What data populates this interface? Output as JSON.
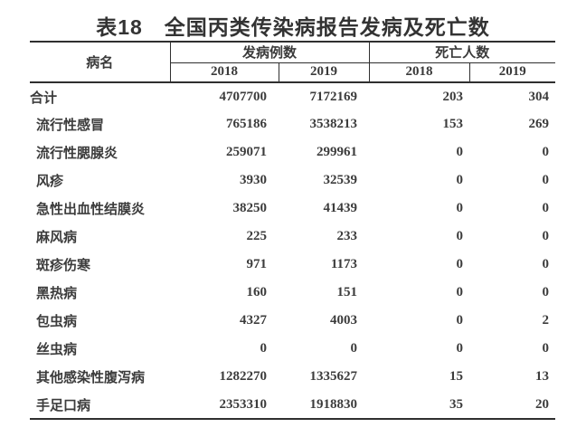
{
  "title": "表18　全国丙类传染病报告发病及死亡数",
  "table": {
    "col_disease_label": "病名",
    "group_cases_label": "发病例数",
    "group_deaths_label": "死亡人数",
    "year_left": "2018",
    "year_right": "2019",
    "rows": [
      {
        "name": "合计",
        "total": true,
        "cases_2018": "4707700",
        "cases_2019": "7172169",
        "deaths_2018": "203",
        "deaths_2019": "304"
      },
      {
        "name": "流行性感冒",
        "total": false,
        "cases_2018": "765186",
        "cases_2019": "3538213",
        "deaths_2018": "153",
        "deaths_2019": "269"
      },
      {
        "name": "流行性腮腺炎",
        "total": false,
        "cases_2018": "259071",
        "cases_2019": "299961",
        "deaths_2018": "0",
        "deaths_2019": "0"
      },
      {
        "name": "风疹",
        "total": false,
        "cases_2018": "3930",
        "cases_2019": "32539",
        "deaths_2018": "0",
        "deaths_2019": "0"
      },
      {
        "name": "急性出血性结膜炎",
        "total": false,
        "cases_2018": "38250",
        "cases_2019": "41439",
        "deaths_2018": "0",
        "deaths_2019": "0"
      },
      {
        "name": "麻风病",
        "total": false,
        "cases_2018": "225",
        "cases_2019": "233",
        "deaths_2018": "0",
        "deaths_2019": "0"
      },
      {
        "name": "斑疹伤寒",
        "total": false,
        "cases_2018": "971",
        "cases_2019": "1173",
        "deaths_2018": "0",
        "deaths_2019": "0"
      },
      {
        "name": "黑热病",
        "total": false,
        "cases_2018": "160",
        "cases_2019": "151",
        "deaths_2018": "0",
        "deaths_2019": "0"
      },
      {
        "name": "包虫病",
        "total": false,
        "cases_2018": "4327",
        "cases_2019": "4003",
        "deaths_2018": "0",
        "deaths_2019": "2"
      },
      {
        "name": "丝虫病",
        "total": false,
        "cases_2018": "0",
        "cases_2019": "0",
        "deaths_2018": "0",
        "deaths_2019": "0"
      },
      {
        "name": "其他感染性腹泻病",
        "total": false,
        "cases_2018": "1282270",
        "cases_2019": "1335627",
        "deaths_2018": "15",
        "deaths_2019": "13"
      },
      {
        "name": "手足口病",
        "total": false,
        "cases_2018": "2353310",
        "cases_2019": "1918830",
        "deaths_2018": "35",
        "deaths_2019": "20"
      }
    ]
  },
  "chart_data": {
    "type": "table",
    "title": "表18　全国丙类传染病报告发病及死亡数",
    "columns": [
      "病名",
      "发病例数 2018",
      "发病例数 2019",
      "死亡人数 2018",
      "死亡人数 2019"
    ],
    "rows": [
      [
        "合计",
        4707700,
        7172169,
        203,
        304
      ],
      [
        "流行性感冒",
        765186,
        3538213,
        153,
        269
      ],
      [
        "流行性腮腺炎",
        259071,
        299961,
        0,
        0
      ],
      [
        "风疹",
        3930,
        32539,
        0,
        0
      ],
      [
        "急性出血性结膜炎",
        38250,
        41439,
        0,
        0
      ],
      [
        "麻风病",
        225,
        233,
        0,
        0
      ],
      [
        "斑疹伤寒",
        971,
        1173,
        0,
        0
      ],
      [
        "黑热病",
        160,
        151,
        0,
        0
      ],
      [
        "包虫病",
        4327,
        4003,
        0,
        2
      ],
      [
        "丝虫病",
        0,
        0,
        0,
        0
      ],
      [
        "其他感染性腹泻病",
        1282270,
        1335627,
        15,
        13
      ],
      [
        "手足口病",
        2353310,
        1918830,
        35,
        20
      ]
    ]
  },
  "colors": {
    "text": "#3a3a3a",
    "line": "#2f2f2f",
    "background": "#ffffff"
  }
}
